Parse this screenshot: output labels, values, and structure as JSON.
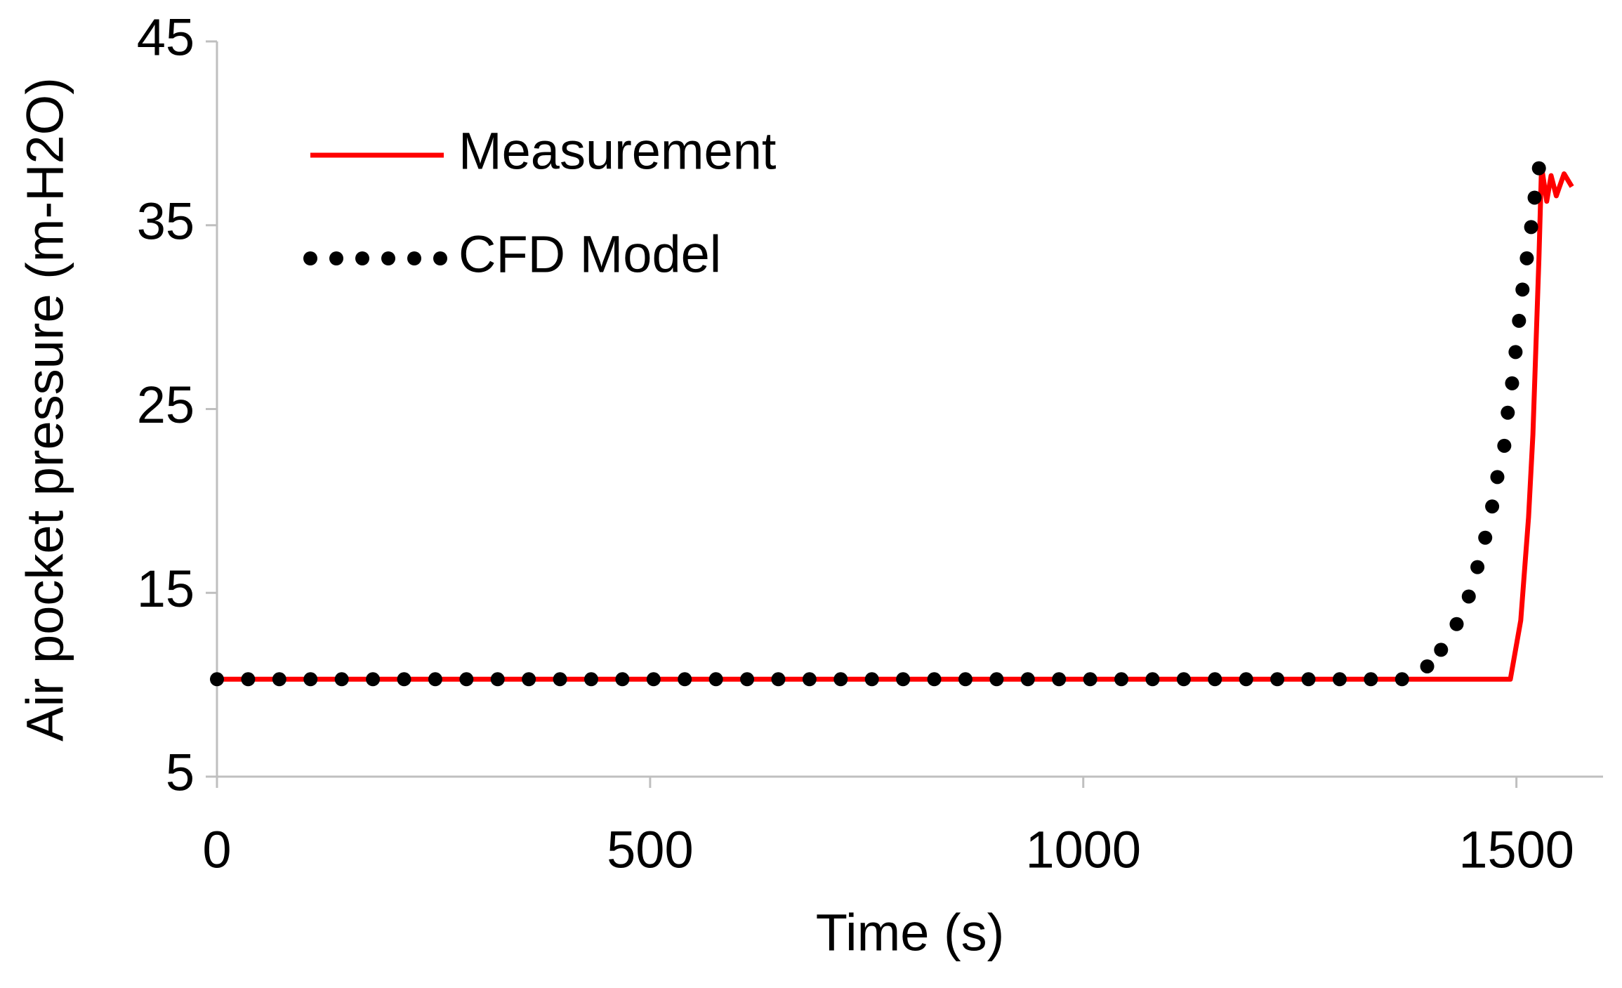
{
  "chart_data": {
    "type": "line",
    "xlabel": "Time (s)",
    "ylabel": "Air pocket pressure (m-H2O)",
    "xlim": [
      0,
      1600
    ],
    "ylim": [
      5,
      45
    ],
    "xticks": [
      0,
      500,
      1000,
      1500
    ],
    "yticks": [
      5,
      15,
      25,
      35,
      45
    ],
    "grid": false,
    "legend": "upper left",
    "series": [
      {
        "name": "Measurement",
        "color": "#ff0000",
        "style": "solid",
        "x": [
          0,
          1493,
          1505,
          1514,
          1519,
          1526,
          1529,
          1535,
          1540,
          1546,
          1555,
          1564
        ],
        "values": [
          10.3,
          10.3,
          13.5,
          19.1,
          23.6,
          33.2,
          38.2,
          36.3,
          37.7,
          36.6,
          37.8,
          37.1
        ]
      },
      {
        "name": "CFD Model",
        "color": "#000000",
        "style": "dotted",
        "x": [
          0,
          36,
          72,
          108,
          144,
          180,
          216,
          252,
          288,
          324,
          360,
          396,
          432,
          468,
          504,
          540,
          576,
          612,
          648,
          684,
          720,
          756,
          792,
          828,
          864,
          900,
          936,
          972,
          1008,
          1044,
          1080,
          1116,
          1152,
          1188,
          1224,
          1260,
          1296,
          1332,
          1368,
          1397,
          1413,
          1431,
          1445,
          1455,
          1464,
          1472,
          1478,
          1486,
          1490,
          1495,
          1499,
          1503,
          1507,
          1512,
          1517,
          1521,
          1526
        ],
        "values": [
          10.3,
          10.3,
          10.3,
          10.3,
          10.3,
          10.3,
          10.3,
          10.3,
          10.3,
          10.3,
          10.3,
          10.3,
          10.3,
          10.3,
          10.3,
          10.3,
          10.3,
          10.3,
          10.3,
          10.3,
          10.3,
          10.3,
          10.3,
          10.3,
          10.3,
          10.3,
          10.3,
          10.3,
          10.3,
          10.3,
          10.3,
          10.3,
          10.3,
          10.3,
          10.3,
          10.3,
          10.3,
          10.3,
          10.3,
          11,
          11.9,
          13.3,
          14.8,
          16.4,
          18,
          19.7,
          21.3,
          23,
          24.8,
          26.4,
          28.1,
          29.8,
          31.5,
          33.2,
          34.9,
          36.5,
          38.1
        ]
      }
    ]
  }
}
